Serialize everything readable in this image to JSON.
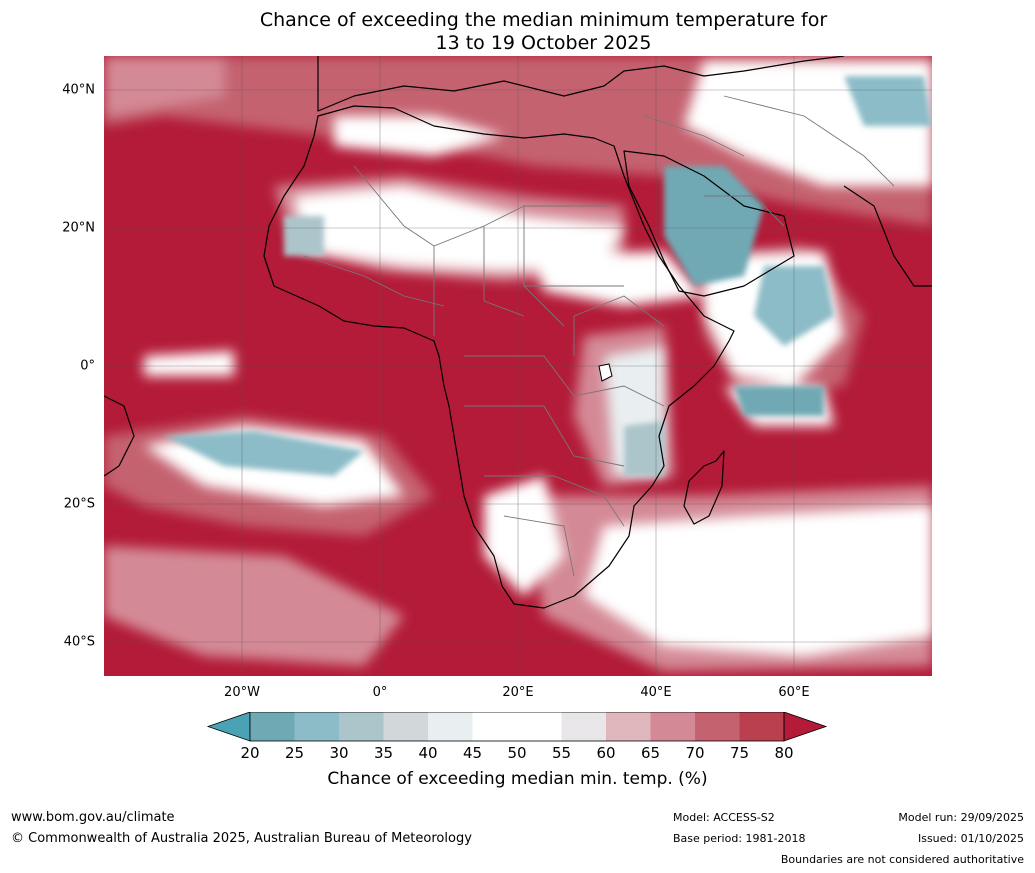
{
  "title_line1": "Chance of exceeding the median minimum temperature for",
  "title_line2": "13 to 19 October 2025",
  "lat_labels": [
    "40°N",
    "20°N",
    "0°",
    "20°S",
    "40°S"
  ],
  "lon_labels": [
    "20°W",
    "0°",
    "20°E",
    "40°E",
    "60°E"
  ],
  "colorbar": {
    "ticks": [
      "20",
      "25",
      "30",
      "35",
      "40",
      "45",
      "50",
      "55",
      "60",
      "65",
      "70",
      "75",
      "80"
    ],
    "colors": [
      "#4aa3b5",
      "#6fa9b4",
      "#8cbcc7",
      "#abc5ca",
      "#d2d7da",
      "#e9eff1",
      "#ffffff",
      "#ffffff",
      "#e9e6e9",
      "#e0b6bd",
      "#d48a96",
      "#c5626f",
      "#bb404f",
      "#b31b38"
    ],
    "label": "Chance of exceeding median min. temp. (%)"
  },
  "footer": {
    "website": "www.bom.gov.au/climate",
    "copyright": "© Commonwealth of Australia 2025, Australian Bureau of Meteorology",
    "model": "Model: ACCESS-S2",
    "base_period": "Base period: 1981-2018",
    "model_run": "Model run: 29/09/2025",
    "issued": "Issued: 01/10/2025",
    "disclaimer": "Boundaries are not considered authoritative"
  },
  "colors": {
    "high": "#b31b38",
    "low": "#4aa3b5"
  }
}
